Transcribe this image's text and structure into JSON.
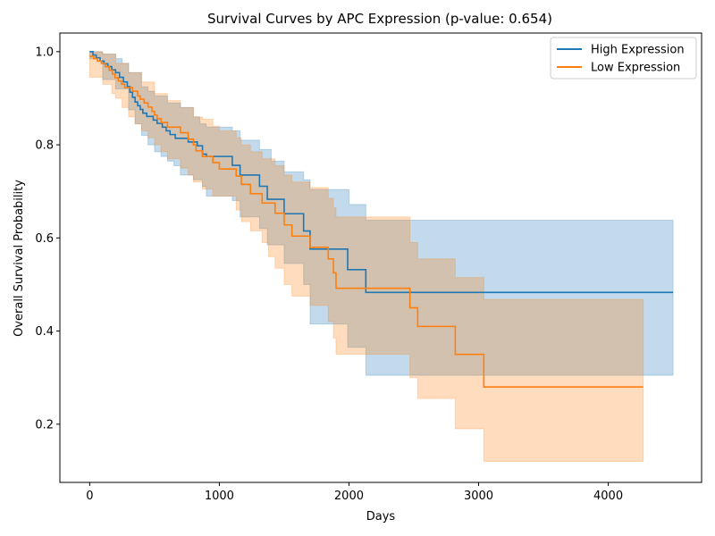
{
  "chart_data": {
    "type": "line",
    "title": "Survival Curves by APC Expression (p-value: 0.654)",
    "xlabel": "Days",
    "ylabel": "Overall Survival Probability",
    "xlim": [
      -230,
      4720
    ],
    "ylim": [
      0.075,
      1.04
    ],
    "xticks": [
      0,
      1000,
      2000,
      3000,
      4000
    ],
    "yticks": [
      0.2,
      0.4,
      0.6,
      0.8,
      1.0
    ],
    "xtick_labels": [
      "0",
      "1000",
      "2000",
      "3000",
      "4000"
    ],
    "ytick_labels": [
      "0.2",
      "0.4",
      "0.6",
      "0.8",
      "1.0"
    ],
    "grid": false,
    "legend_position": "top-right",
    "series": [
      {
        "name": "High Expression",
        "color": "#1f77b4",
        "band_color": "#1f77b4",
        "band_opacity": 0.27,
        "steps": [
          [
            0,
            1.0
          ],
          [
            25,
            0.993
          ],
          [
            50,
            0.987
          ],
          [
            80,
            0.98
          ],
          [
            110,
            0.974
          ],
          [
            140,
            0.968
          ],
          [
            170,
            0.961
          ],
          [
            200,
            0.955
          ],
          [
            230,
            0.945
          ],
          [
            260,
            0.935
          ],
          [
            290,
            0.925
          ],
          [
            310,
            0.913
          ],
          [
            330,
            0.902
          ],
          [
            350,
            0.892
          ],
          [
            370,
            0.884
          ],
          [
            390,
            0.876
          ],
          [
            410,
            0.868
          ],
          [
            440,
            0.861
          ],
          [
            490,
            0.853
          ],
          [
            520,
            0.846
          ],
          [
            560,
            0.838
          ],
          [
            590,
            0.83
          ],
          [
            620,
            0.822
          ],
          [
            660,
            0.814
          ],
          [
            760,
            0.806
          ],
          [
            830,
            0.798
          ],
          [
            870,
            0.78
          ],
          [
            900,
            0.775
          ],
          [
            1100,
            0.756
          ],
          [
            1160,
            0.735
          ],
          [
            1310,
            0.711
          ],
          [
            1370,
            0.683
          ],
          [
            1500,
            0.652
          ],
          [
            1650,
            0.615
          ],
          [
            1700,
            0.576
          ],
          [
            1990,
            0.532
          ],
          [
            2130,
            0.483
          ],
          [
            4500,
            0.483
          ]
        ],
        "upper": [
          [
            0,
            1.0
          ],
          [
            100,
            0.995
          ],
          [
            200,
            0.985
          ],
          [
            250,
            0.975
          ],
          [
            300,
            0.955
          ],
          [
            400,
            0.925
          ],
          [
            450,
            0.915
          ],
          [
            500,
            0.905
          ],
          [
            600,
            0.89
          ],
          [
            700,
            0.88
          ],
          [
            800,
            0.86
          ],
          [
            850,
            0.845
          ],
          [
            900,
            0.838
          ],
          [
            1100,
            0.83
          ],
          [
            1160,
            0.81
          ],
          [
            1310,
            0.79
          ],
          [
            1400,
            0.765
          ],
          [
            1500,
            0.742
          ],
          [
            1650,
            0.725
          ],
          [
            1700,
            0.704
          ],
          [
            2000,
            0.672
          ],
          [
            2130,
            0.638
          ],
          [
            4500,
            0.638
          ]
        ],
        "lower": [
          [
            0,
            0.985
          ],
          [
            100,
            0.94
          ],
          [
            200,
            0.92
          ],
          [
            300,
            0.875
          ],
          [
            350,
            0.845
          ],
          [
            400,
            0.82
          ],
          [
            450,
            0.8
          ],
          [
            500,
            0.785
          ],
          [
            550,
            0.775
          ],
          [
            600,
            0.765
          ],
          [
            650,
            0.755
          ],
          [
            700,
            0.735
          ],
          [
            800,
            0.725
          ],
          [
            870,
            0.71
          ],
          [
            900,
            0.69
          ],
          [
            1100,
            0.68
          ],
          [
            1160,
            0.645
          ],
          [
            1310,
            0.62
          ],
          [
            1370,
            0.585
          ],
          [
            1500,
            0.545
          ],
          [
            1650,
            0.5
          ],
          [
            1700,
            0.415
          ],
          [
            1990,
            0.365
          ],
          [
            2130,
            0.305
          ],
          [
            4500,
            0.305
          ]
        ]
      },
      {
        "name": "Low Expression",
        "color": "#ff7f0e",
        "band_color": "#ff7f0e",
        "band_opacity": 0.27,
        "steps": [
          [
            0,
            0.99
          ],
          [
            30,
            0.985
          ],
          [
            60,
            0.98
          ],
          [
            90,
            0.975
          ],
          [
            120,
            0.968
          ],
          [
            150,
            0.96
          ],
          [
            175,
            0.952
          ],
          [
            195,
            0.944
          ],
          [
            220,
            0.937
          ],
          [
            245,
            0.93
          ],
          [
            270,
            0.923
          ],
          [
            330,
            0.915
          ],
          [
            370,
            0.905
          ],
          [
            390,
            0.898
          ],
          [
            420,
            0.89
          ],
          [
            450,
            0.881
          ],
          [
            480,
            0.872
          ],
          [
            500,
            0.864
          ],
          [
            520,
            0.856
          ],
          [
            550,
            0.848
          ],
          [
            600,
            0.838
          ],
          [
            700,
            0.826
          ],
          [
            760,
            0.812
          ],
          [
            800,
            0.8
          ],
          [
            820,
            0.787
          ],
          [
            870,
            0.775
          ],
          [
            950,
            0.762
          ],
          [
            1000,
            0.748
          ],
          [
            1130,
            0.733
          ],
          [
            1170,
            0.715
          ],
          [
            1240,
            0.695
          ],
          [
            1330,
            0.675
          ],
          [
            1430,
            0.653
          ],
          [
            1500,
            0.628
          ],
          [
            1560,
            0.604
          ],
          [
            1700,
            0.58
          ],
          [
            1840,
            0.555
          ],
          [
            1880,
            0.525
          ],
          [
            1900,
            0.492
          ],
          [
            2470,
            0.45
          ],
          [
            2530,
            0.41
          ],
          [
            2820,
            0.35
          ],
          [
            3040,
            0.28
          ],
          [
            4270,
            0.28
          ]
        ],
        "upper": [
          [
            0,
            1.0
          ],
          [
            100,
            0.995
          ],
          [
            200,
            0.975
          ],
          [
            300,
            0.955
          ],
          [
            400,
            0.935
          ],
          [
            500,
            0.91
          ],
          [
            600,
            0.895
          ],
          [
            700,
            0.88
          ],
          [
            800,
            0.86
          ],
          [
            870,
            0.855
          ],
          [
            950,
            0.84
          ],
          [
            1000,
            0.83
          ],
          [
            1130,
            0.815
          ],
          [
            1170,
            0.8
          ],
          [
            1240,
            0.785
          ],
          [
            1330,
            0.77
          ],
          [
            1430,
            0.755
          ],
          [
            1500,
            0.735
          ],
          [
            1560,
            0.72
          ],
          [
            1700,
            0.708
          ],
          [
            1840,
            0.685
          ],
          [
            1880,
            0.665
          ],
          [
            1900,
            0.645
          ],
          [
            2470,
            0.59
          ],
          [
            2530,
            0.555
          ],
          [
            2820,
            0.515
          ],
          [
            3040,
            0.468
          ],
          [
            4270,
            0.468
          ]
        ],
        "lower": [
          [
            0,
            0.945
          ],
          [
            100,
            0.93
          ],
          [
            170,
            0.91
          ],
          [
            200,
            0.9
          ],
          [
            250,
            0.88
          ],
          [
            300,
            0.86
          ],
          [
            350,
            0.845
          ],
          [
            400,
            0.83
          ],
          [
            450,
            0.815
          ],
          [
            500,
            0.8
          ],
          [
            550,
            0.785
          ],
          [
            600,
            0.77
          ],
          [
            700,
            0.75
          ],
          [
            760,
            0.735
          ],
          [
            800,
            0.72
          ],
          [
            870,
            0.705
          ],
          [
            950,
            0.69
          ],
          [
            1130,
            0.66
          ],
          [
            1170,
            0.635
          ],
          [
            1240,
            0.615
          ],
          [
            1330,
            0.59
          ],
          [
            1380,
            0.56
          ],
          [
            1430,
            0.535
          ],
          [
            1500,
            0.5
          ],
          [
            1560,
            0.475
          ],
          [
            1700,
            0.455
          ],
          [
            1840,
            0.42
          ],
          [
            1880,
            0.385
          ],
          [
            1900,
            0.35
          ],
          [
            2470,
            0.3
          ],
          [
            2530,
            0.255
          ],
          [
            2820,
            0.19
          ],
          [
            3040,
            0.12
          ],
          [
            4270,
            0.12
          ]
        ]
      }
    ]
  }
}
